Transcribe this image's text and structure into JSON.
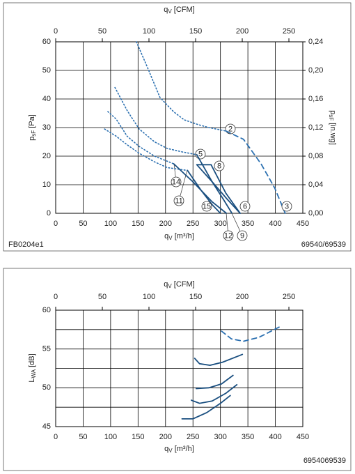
{
  "chart_data": [
    {
      "type": "line",
      "x2_label": [
        "q",
        "V",
        " [CFM]"
      ],
      "x_label": [
        "q",
        "V",
        " [m³/h]"
      ],
      "y_label": [
        "p",
        "sF",
        " [Pa]"
      ],
      "y2_label": [
        "p",
        "sF",
        " [in.wg]"
      ],
      "xlim": [
        0,
        450
      ],
      "xticks": [
        0,
        50,
        100,
        150,
        200,
        250,
        300,
        350,
        400,
        450
      ],
      "x2lim": [
        0,
        264.9
      ],
      "x2ticks": [
        0,
        50,
        100,
        150,
        200,
        250
      ],
      "ylim": [
        0,
        60
      ],
      "yticks": [
        0,
        10,
        20,
        30,
        40,
        50,
        60
      ],
      "y2lim": [
        0,
        0.24
      ],
      "y2ticks": [
        {
          "value": 0,
          "label": "0,00"
        },
        {
          "value": 0.04,
          "label": "0,04"
        },
        {
          "value": 0.08,
          "label": "0,08"
        },
        {
          "value": 0.12,
          "label": "0,12"
        },
        {
          "value": 0.16,
          "label": "0,16"
        },
        {
          "value": 0.2,
          "label": "0,20"
        },
        {
          "value": 0.24,
          "label": "0,24"
        }
      ],
      "grid": true,
      "series": [
        {
          "name": "2",
          "style": "dotted",
          "color": "#2a6fb0",
          "x": [
            147,
            165,
            190,
            215,
            234,
            260,
            279,
            310
          ],
          "values": [
            60,
            52,
            40.5,
            35.5,
            32.7,
            31,
            30,
            28.8
          ]
        },
        {
          "name": "3",
          "style": "dashed",
          "color": "#2a6fb0",
          "x": [
            310,
            342,
            374,
            399,
            418
          ],
          "values": [
            28.8,
            25.9,
            17.3,
            8.8,
            0
          ]
        },
        {
          "name": "5",
          "style": "dotted",
          "color": "#2a6fb0",
          "x": [
            108,
            130,
            152,
            180,
            203,
            230,
            257
          ],
          "values": [
            44,
            36,
            29.5,
            25,
            22.7,
            21.5,
            20.5
          ]
        },
        {
          "name": "14",
          "style": "dotted",
          "color": "#2a6fb0",
          "x": [
            95,
            110,
            130,
            152,
            180,
            215
          ],
          "values": [
            35.6,
            33,
            27,
            23.4,
            20,
            17.3
          ]
        },
        {
          "name": "11",
          "style": "dotted",
          "color": "#2a6fb0",
          "x": [
            89,
            110,
            130,
            152,
            180,
            203,
            240
          ],
          "values": [
            29.5,
            27,
            24,
            21,
            18,
            16,
            15
          ]
        },
        {
          "name": "8",
          "style": "solid",
          "color": "#1a4f80",
          "x": [
            257,
            283,
            310,
            336
          ],
          "values": [
            17,
            17,
            7,
            0
          ]
        },
        {
          "name": "6",
          "style": "solid",
          "color": "#1a4f80",
          "x": [
            257,
            285,
            312,
            336
          ],
          "values": [
            17,
            11,
            5,
            0
          ]
        },
        {
          "name": "9",
          "style": "solid",
          "color": "#1a4f80",
          "x": [
            257,
            285,
            305,
            321
          ],
          "values": [
            20.5,
            11,
            5,
            0
          ]
        },
        {
          "name": "12",
          "style": "solid",
          "color": "#1a4f80",
          "x": [
            215,
            250,
            285,
            311
          ],
          "values": [
            17.3,
            11,
            4,
            0
          ]
        },
        {
          "name": "15",
          "style": "solid",
          "color": "#1a4f80",
          "x": [
            240,
            265,
            285,
            300
          ],
          "values": [
            15,
            8,
            3,
            0
          ]
        }
      ],
      "footer_left": "FB0204e1",
      "footer_right": "69540/69539"
    },
    {
      "type": "line",
      "x2_label": [
        "q",
        "V",
        " [CFM]"
      ],
      "x_label": [
        "q",
        "V",
        " [m³/h]"
      ],
      "y_label": [
        "L",
        "WA",
        " [dB]"
      ],
      "xlim": [
        0,
        450
      ],
      "xticks": [
        0,
        50,
        100,
        150,
        200,
        250,
        300,
        350,
        400,
        450
      ],
      "x2lim": [
        0,
        264.9
      ],
      "x2ticks": [
        0,
        50,
        100,
        150,
        200,
        250
      ],
      "ylim": [
        45,
        60
      ],
      "yticks": [
        45,
        50,
        55,
        60
      ],
      "minor_yticks": [
        47.5,
        52.5,
        57.5
      ],
      "grid": true,
      "series": [
        {
          "style": "dashed",
          "color": "#2a6fb0",
          "x": [
            302,
            320,
            342,
            370,
            412
          ],
          "values": [
            57.3,
            56.3,
            56.0,
            56.5,
            58.0
          ]
        },
        {
          "style": "solid",
          "color": "#1a4f80",
          "x": [
            253,
            262,
            281,
            304,
            340
          ],
          "values": [
            53.8,
            53.1,
            52.9,
            53.3,
            54.3
          ]
        },
        {
          "style": "solid",
          "color": "#1a4f80",
          "x": [
            256,
            279,
            302,
            323
          ],
          "values": [
            49.9,
            50.0,
            50.5,
            51.6
          ]
        },
        {
          "style": "solid",
          "color": "#1a4f80",
          "x": [
            247,
            262,
            285,
            310,
            330
          ],
          "values": [
            48.4,
            48.0,
            48.3,
            49.3,
            50.4
          ]
        },
        {
          "style": "solid",
          "color": "#1a4f80",
          "x": [
            230,
            250,
            275,
            300,
            318
          ],
          "values": [
            46.0,
            46.0,
            46.8,
            48.0,
            49.0
          ]
        }
      ],
      "footer_right": "6954069539"
    }
  ]
}
